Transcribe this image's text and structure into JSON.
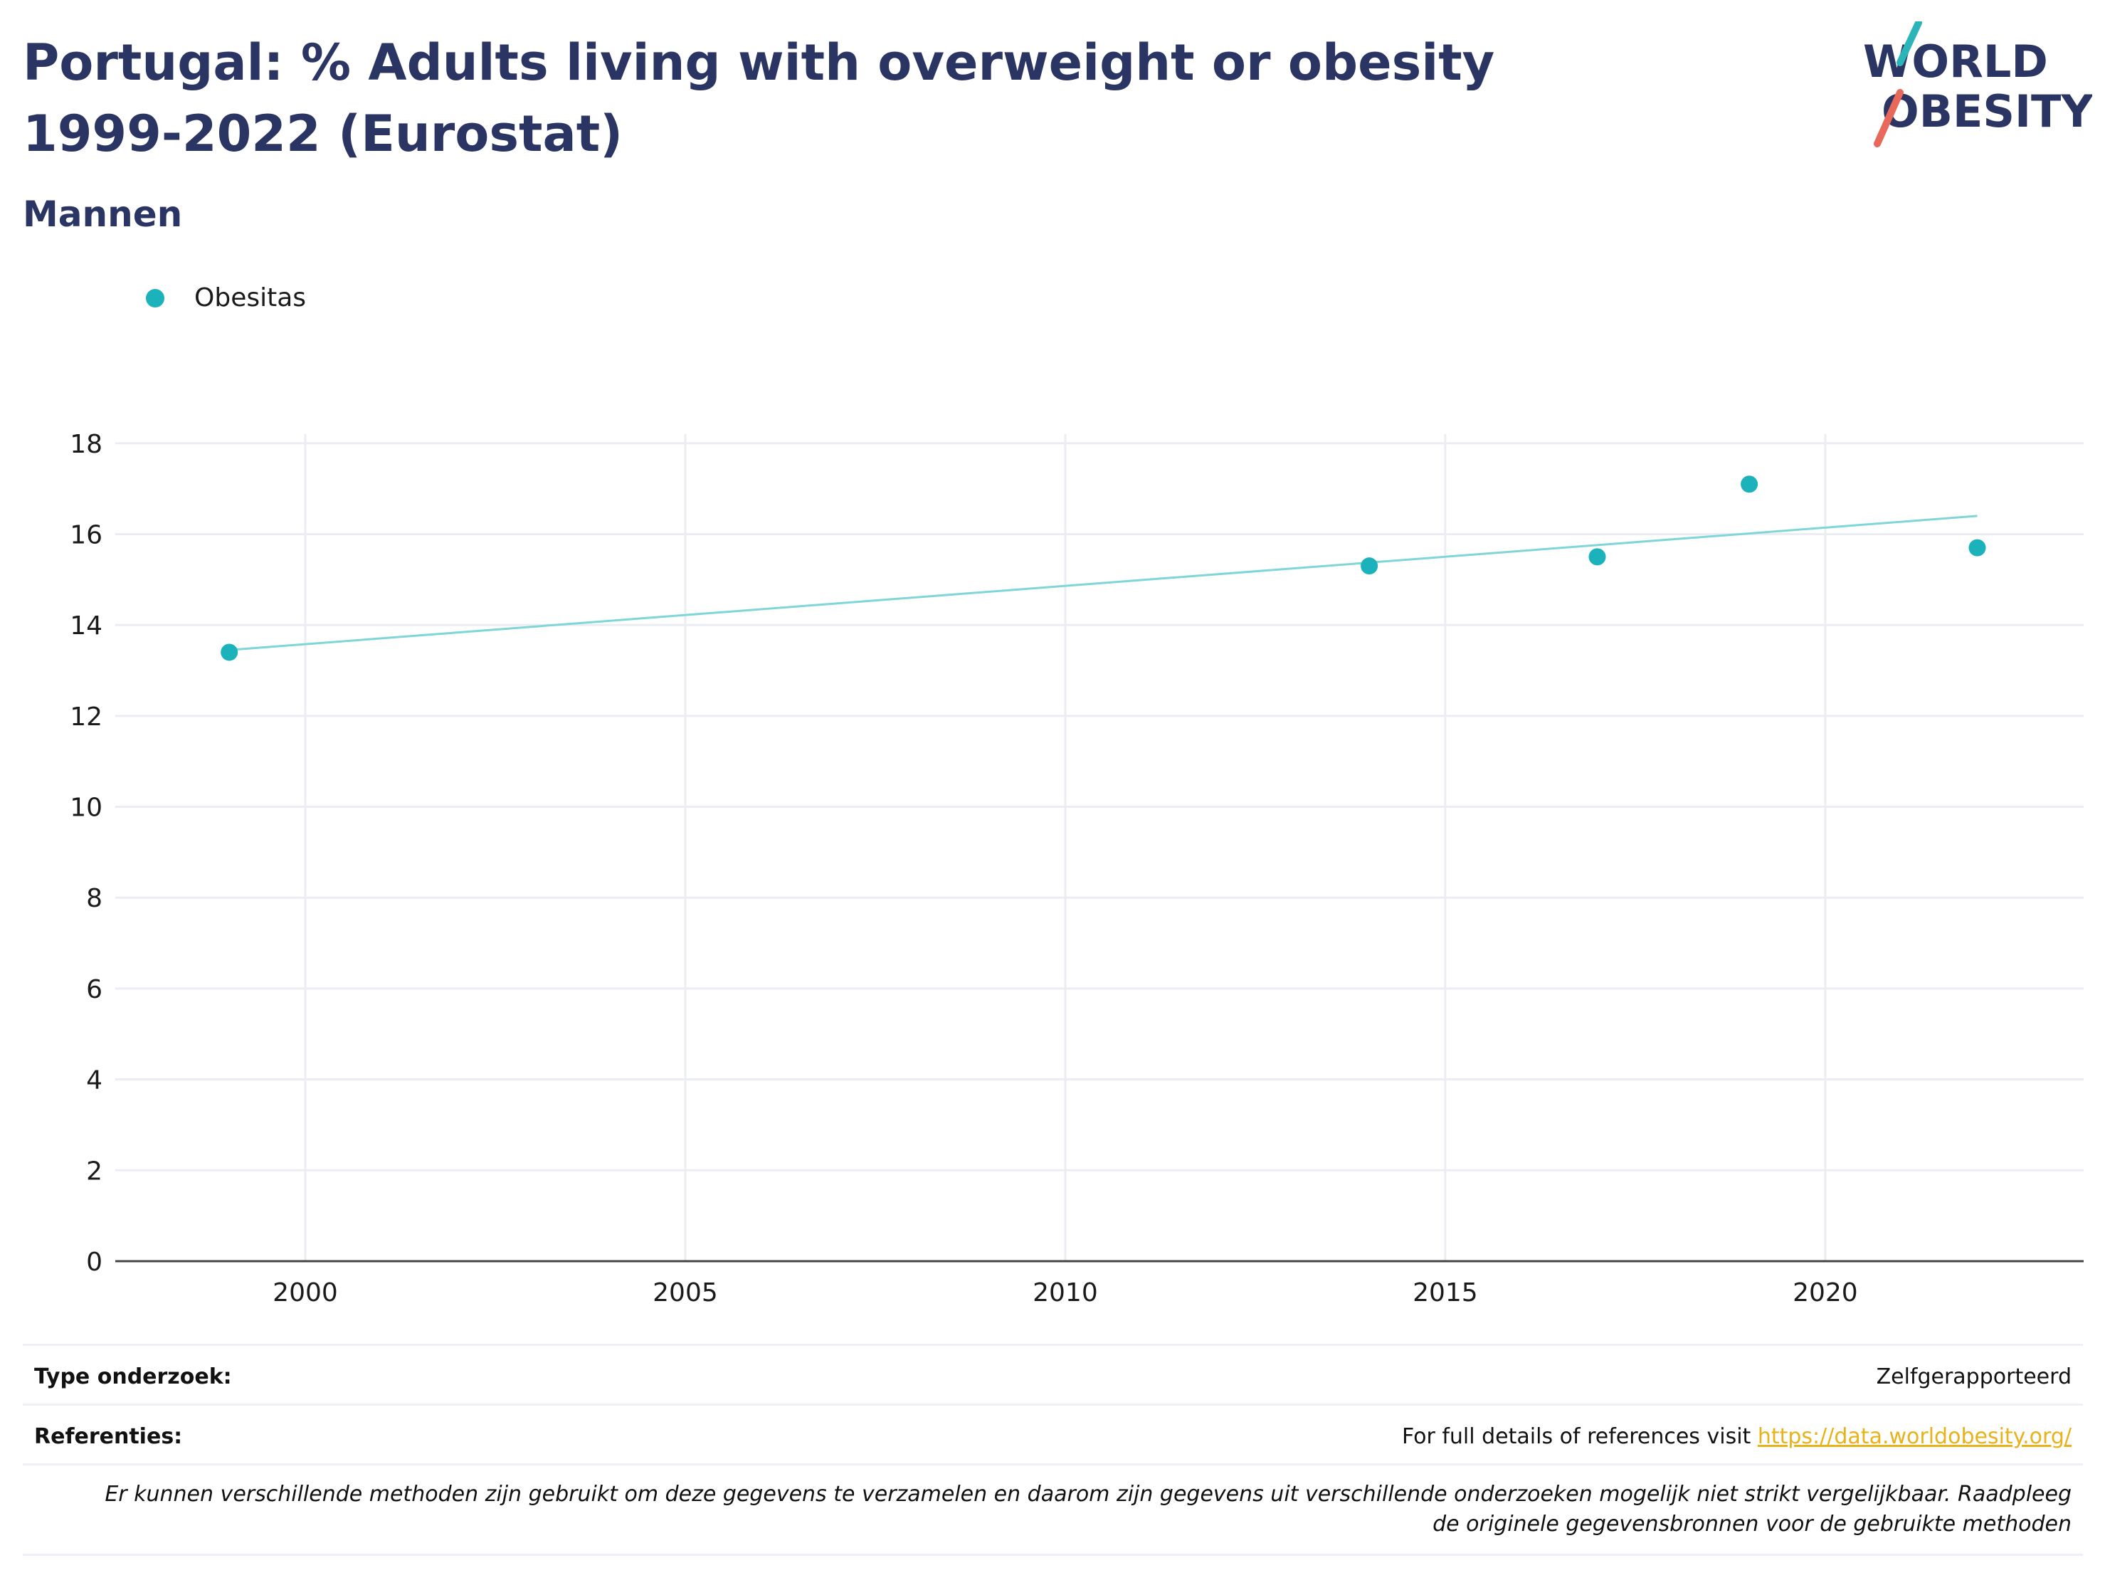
{
  "header": {
    "title": "Portugal: % Adults living with overweight or obesity 1999-2022 (Eurostat)",
    "subtitle": "Mannen"
  },
  "logo": {
    "line1": "WORLD",
    "line2": "OBESITY",
    "color_text": "#2b3563",
    "color_teal": "#2bb5b8",
    "color_coral": "#e8685a"
  },
  "legend": {
    "label": "Obesitas",
    "color": "#1cb2bb"
  },
  "chart_data": {
    "type": "scatter",
    "series": [
      {
        "name": "Obesitas",
        "color": "#1cb2bb",
        "x": [
          1999,
          2014,
          2017,
          2019,
          2022
        ],
        "y": [
          13.4,
          15.3,
          15.5,
          17.1,
          15.7
        ]
      }
    ],
    "trendline": {
      "x": [
        1999,
        2022
      ],
      "y": [
        13.45,
        16.4
      ],
      "color": "#7fd6d9"
    },
    "xlim": [
      1997.5,
      2023.4
    ],
    "ylim": [
      0,
      18.2
    ],
    "xticks": [
      2000,
      2005,
      2010,
      2015,
      2020
    ],
    "yticks": [
      0,
      2,
      4,
      6,
      8,
      10,
      12,
      14,
      16,
      18
    ],
    "grid": true
  },
  "footer": {
    "type_label": "Type onderzoek:",
    "type_value": "Zelfgerapporteerd",
    "ref_label": "Referenties:",
    "ref_text": "For full details of references visit ",
    "ref_link": "https://data.worldobesity.org/",
    "note_line1": "Er kunnen verschillende methoden zijn gebruikt om deze gegevens te verzamelen en daarom zijn gegevens uit verschillende onderzoeken mogelijk niet strikt vergelijkbaar. Raadpleeg",
    "note_line2": "de originele gegevensbronnen voor de gebruikte methoden"
  }
}
